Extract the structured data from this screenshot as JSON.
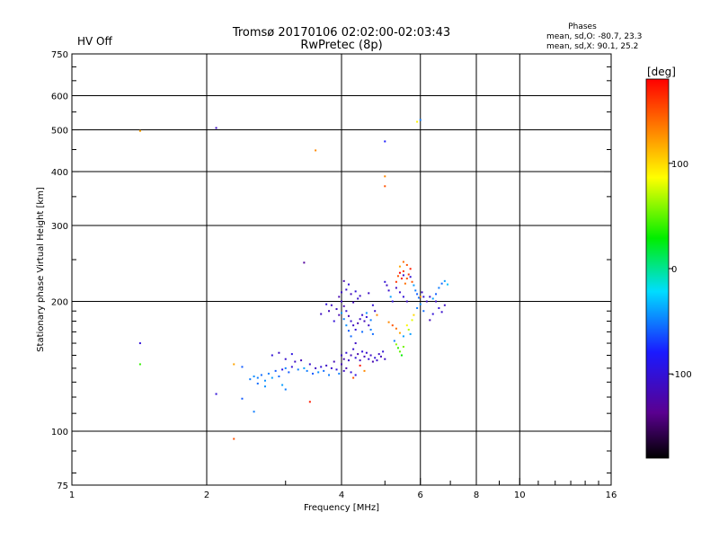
{
  "status": {
    "hv_label": "HV Off",
    "hv_color": "#cc0000"
  },
  "header": {
    "title": "Tromsø 20170106 02:02:00-02:03:43",
    "subtitle": "RwPretec (8p)",
    "phases_title": "Phases",
    "phases_o": "mean, sd,O: -80.7, 23.3",
    "phases_x": "mean, sd,X:  90.1, 25.2"
  },
  "colorbar": {
    "unit_label": "[deg]",
    "ticks": [
      "100",
      "0",
      "-100"
    ],
    "tick_values": [
      100,
      0,
      -100
    ],
    "range": [
      -180,
      180
    ]
  },
  "chart_data": {
    "type": "scatter",
    "xlabel": "Frequency [MHz]",
    "ylabel": "Stationary phase Virtual Height [km]",
    "x_scale": "log",
    "y_scale": "log",
    "xlim": [
      1,
      16
    ],
    "ylim": [
      75,
      750
    ],
    "x_ticks": [
      1,
      2,
      4,
      6,
      8,
      10,
      16
    ],
    "y_ticks": [
      75,
      100,
      200,
      300,
      400,
      500,
      600,
      750
    ],
    "x_major_grid": [
      2,
      4,
      6,
      8,
      10
    ],
    "y_major_grid": [
      100,
      200,
      300,
      400,
      500,
      600
    ],
    "grid": true,
    "points": [
      [
        1.42,
        497,
        120
      ],
      [
        1.42,
        160,
        -100
      ],
      [
        1.42,
        143,
        40
      ],
      [
        2.1,
        505,
        -110
      ],
      [
        3.5,
        448,
        130
      ],
      [
        5.0,
        470,
        -80
      ],
      [
        5.0,
        390,
        130
      ],
      [
        5.0,
        370,
        150
      ],
      [
        5.9,
        522,
        90
      ],
      [
        6.0,
        527,
        -50
      ],
      [
        3.3,
        246,
        -130
      ],
      [
        3.4,
        117,
        170
      ],
      [
        2.3,
        96,
        150
      ],
      [
        2.1,
        122,
        -100
      ],
      [
        2.4,
        119,
        -60
      ],
      [
        2.55,
        111,
        -50
      ],
      [
        2.3,
        143,
        120
      ],
      [
        2.4,
        141,
        -60
      ],
      [
        2.5,
        132,
        -50
      ],
      [
        2.55,
        134,
        -45
      ],
      [
        2.6,
        133,
        -50
      ],
      [
        2.65,
        135,
        -55
      ],
      [
        2.7,
        131,
        -45
      ],
      [
        2.75,
        136,
        -50
      ],
      [
        2.8,
        133,
        -40
      ],
      [
        2.85,
        138,
        -60
      ],
      [
        2.9,
        134,
        -55
      ],
      [
        2.95,
        139,
        -90
      ],
      [
        3.0,
        140,
        -50
      ],
      [
        3.05,
        137,
        -60
      ],
      [
        3.1,
        141,
        -100
      ],
      [
        3.15,
        145,
        -110
      ],
      [
        3.2,
        139,
        -50
      ],
      [
        3.25,
        146,
        -115
      ],
      [
        3.3,
        140,
        -40
      ],
      [
        3.35,
        138,
        -50
      ],
      [
        3.4,
        143,
        -105
      ],
      [
        3.45,
        136,
        -60
      ],
      [
        3.5,
        140,
        -110
      ],
      [
        3.55,
        137,
        -45
      ],
      [
        3.6,
        141,
        -100
      ],
      [
        3.65,
        138,
        -55
      ],
      [
        3.7,
        142,
        -110
      ],
      [
        3.75,
        135,
        -50
      ],
      [
        3.8,
        140,
        -105
      ],
      [
        3.85,
        145,
        -115
      ],
      [
        3.9,
        139,
        -100
      ],
      [
        3.95,
        136,
        -50
      ],
      [
        4.0,
        143,
        -120
      ],
      [
        4.05,
        138,
        -110
      ],
      [
        2.8,
        150,
        -100
      ],
      [
        2.9,
        152,
        -110
      ],
      [
        3.0,
        147,
        -105
      ],
      [
        3.1,
        151,
        -95
      ],
      [
        2.95,
        128,
        -40
      ],
      [
        3.0,
        125,
        -50
      ],
      [
        2.7,
        127,
        -45
      ],
      [
        2.6,
        129,
        -55
      ],
      [
        4.0,
        150,
        -110
      ],
      [
        4.05,
        147,
        -120
      ],
      [
        4.1,
        152,
        -100
      ],
      [
        4.15,
        146,
        -110
      ],
      [
        4.2,
        150,
        -115
      ],
      [
        4.25,
        155,
        -105
      ],
      [
        4.3,
        148,
        -100
      ],
      [
        4.35,
        151,
        -120
      ],
      [
        4.4,
        146,
        -110
      ],
      [
        4.45,
        153,
        -100
      ],
      [
        4.5,
        149,
        -115
      ],
      [
        4.55,
        152,
        -105
      ],
      [
        4.6,
        147,
        -100
      ],
      [
        4.65,
        150,
        -110
      ],
      [
        4.7,
        145,
        -120
      ],
      [
        4.75,
        148,
        -100
      ],
      [
        4.8,
        146,
        -105
      ],
      [
        4.85,
        151,
        -110
      ],
      [
        4.9,
        149,
        -115
      ],
      [
        4.95,
        153,
        -100
      ],
      [
        5.0,
        147,
        -110
      ],
      [
        4.1,
        140,
        -120
      ],
      [
        4.2,
        137,
        -100
      ],
      [
        4.3,
        135,
        -95
      ],
      [
        4.4,
        142,
        170
      ],
      [
        4.5,
        138,
        130
      ],
      [
        4.25,
        133,
        150
      ],
      [
        4.0,
        200,
        -110
      ],
      [
        4.05,
        195,
        -120
      ],
      [
        4.1,
        190,
        -100
      ],
      [
        4.15,
        185,
        -115
      ],
      [
        4.2,
        180,
        -105
      ],
      [
        4.25,
        176,
        -110
      ],
      [
        4.3,
        172,
        -100
      ],
      [
        4.35,
        178,
        -120
      ],
      [
        4.4,
        182,
        -110
      ],
      [
        4.45,
        186,
        -105
      ],
      [
        4.5,
        180,
        -115
      ],
      [
        4.55,
        184,
        -100
      ],
      [
        4.6,
        176,
        -110
      ],
      [
        4.65,
        172,
        -50
      ],
      [
        4.7,
        168,
        -55
      ],
      [
        4.0,
        188,
        -40
      ],
      [
        4.05,
        182,
        -50
      ],
      [
        4.1,
        176,
        -45
      ],
      [
        4.15,
        171,
        -60
      ],
      [
        4.2,
        166,
        -55
      ],
      [
        3.9,
        192,
        -110
      ],
      [
        3.95,
        186,
        -120
      ],
      [
        3.85,
        180,
        -100
      ],
      [
        3.8,
        196,
        -110
      ],
      [
        3.75,
        190,
        -115
      ],
      [
        4.0,
        210,
        -110
      ],
      [
        4.1,
        213,
        -105
      ],
      [
        4.2,
        208,
        -115
      ],
      [
        4.3,
        211,
        -100
      ],
      [
        4.4,
        206,
        -110
      ],
      [
        4.05,
        223,
        -120
      ],
      [
        4.15,
        219,
        -100
      ],
      [
        4.25,
        199,
        -115
      ],
      [
        4.35,
        203,
        -105
      ],
      [
        3.6,
        187,
        -110
      ],
      [
        3.7,
        197,
        -100
      ],
      [
        3.95,
        205,
        -120
      ],
      [
        4.6,
        209,
        -110
      ],
      [
        4.7,
        196,
        -100
      ],
      [
        4.75,
        190,
        -110
      ],
      [
        4.8,
        186,
        130
      ],
      [
        4.55,
        188,
        -45
      ],
      [
        4.65,
        181,
        -50
      ],
      [
        4.45,
        170,
        -55
      ],
      [
        4.3,
        160,
        -110
      ],
      [
        5.0,
        222,
        -100
      ],
      [
        5.05,
        218,
        -110
      ],
      [
        5.1,
        212,
        -105
      ],
      [
        5.15,
        205,
        -40
      ],
      [
        5.2,
        200,
        -100
      ],
      [
        5.3,
        215,
        -110
      ],
      [
        5.4,
        210,
        -105
      ],
      [
        5.5,
        205,
        -100
      ],
      [
        5.6,
        200,
        -110
      ],
      [
        5.5,
        230,
        -105
      ],
      [
        5.3,
        222,
        160
      ],
      [
        5.35,
        229,
        150
      ],
      [
        5.4,
        233,
        180
      ],
      [
        5.45,
        226,
        170
      ],
      [
        5.5,
        235,
        160
      ],
      [
        5.55,
        220,
        140
      ],
      [
        5.6,
        226,
        150
      ],
      [
        5.65,
        231,
        160
      ],
      [
        5.7,
        238,
        170
      ],
      [
        5.75,
        222,
        150
      ],
      [
        5.8,
        218,
        -40
      ],
      [
        5.85,
        212,
        -50
      ],
      [
        5.9,
        208,
        -60
      ],
      [
        5.95,
        204,
        -55
      ],
      [
        6.0,
        205,
        130
      ],
      [
        6.05,
        210,
        -110
      ],
      [
        6.1,
        205,
        -100
      ],
      [
        6.2,
        200,
        -110
      ],
      [
        6.3,
        205,
        -105
      ],
      [
        6.4,
        203,
        -40
      ],
      [
        6.5,
        208,
        -60
      ],
      [
        6.6,
        215,
        -50
      ],
      [
        6.7,
        220,
        -55
      ],
      [
        6.8,
        223,
        -40
      ],
      [
        6.9,
        219,
        -30
      ],
      [
        6.5,
        200,
        -110
      ],
      [
        6.6,
        193,
        -100
      ],
      [
        6.7,
        189,
        -105
      ],
      [
        6.8,
        196,
        -110
      ],
      [
        6.4,
        187,
        -100
      ],
      [
        6.3,
        181,
        -115
      ],
      [
        5.5,
        247,
        140
      ],
      [
        5.6,
        243,
        150
      ],
      [
        5.4,
        241,
        120
      ],
      [
        5.7,
        228,
        -100
      ],
      [
        5.1,
        179,
        130
      ],
      [
        5.2,
        176,
        150
      ],
      [
        5.3,
        173,
        140
      ],
      [
        5.4,
        169,
        120
      ],
      [
        5.5,
        166,
        -40
      ],
      [
        5.3,
        159,
        60
      ],
      [
        5.35,
        156,
        40
      ],
      [
        5.4,
        153,
        50
      ],
      [
        5.45,
        150,
        30
      ],
      [
        5.5,
        157,
        55
      ],
      [
        5.25,
        162,
        -50
      ],
      [
        5.6,
        176,
        90
      ],
      [
        5.65,
        172,
        70
      ],
      [
        5.7,
        168,
        -40
      ],
      [
        5.75,
        181,
        80
      ],
      [
        5.8,
        186,
        100
      ],
      [
        5.9,
        193,
        -50
      ],
      [
        6.0,
        197,
        -45
      ],
      [
        6.1,
        190,
        -55
      ]
    ]
  }
}
